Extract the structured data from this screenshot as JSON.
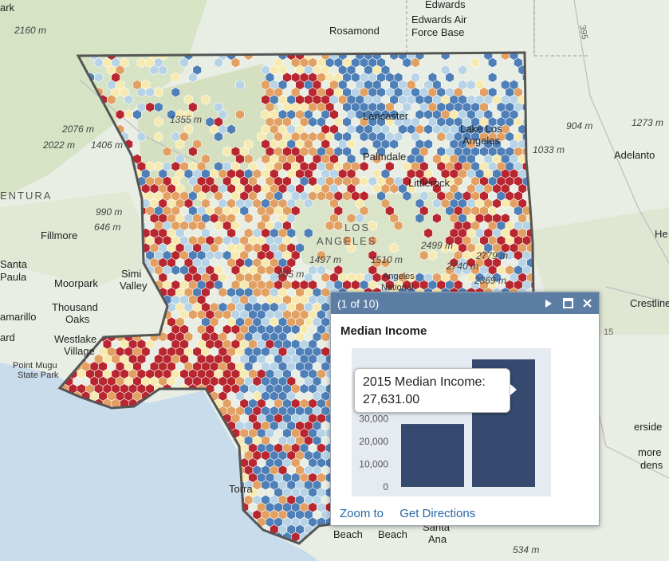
{
  "map": {
    "colors": {
      "dark_red": "#b8262f",
      "orange": "#e2a063",
      "light_yellow": "#f6eab0",
      "light_blue": "#b7d3e6",
      "dark_blue": "#4f7fb7",
      "boundary": "#555555",
      "water": "#c9dcec",
      "terrain": "#e9eee4"
    },
    "labels": {
      "edwards": "Edwards",
      "edwards_afb_1": "Edwards Air",
      "edwards_afb_2": "Force Base",
      "rosamond": "Rosamond",
      "lancaster": "Lancaster",
      "palmdale": "Palmdale",
      "littlerock": "Littlerock",
      "lake_los_angeles_1": "Lake Los",
      "lake_los_angeles_2": "Angeles",
      "adelanto": "Adelanto",
      "ventura": "ENTURA",
      "los_angeles_1": "LOS",
      "los_angeles_2": "ANGELES",
      "fillmore": "Fillmore",
      "santa_paula_1": "Santa",
      "santa_paula_2": "Paula",
      "moorpark": "Moorpark",
      "simi_valley_1": "Simi",
      "simi_valley_2": "Valley",
      "thousand_oaks_1": "Thousand",
      "thousand_oaks_2": "Oaks",
      "camarillo": "amarillo",
      "westlake_1": "Westlake",
      "westlake_2": "Village",
      "ard": "ard",
      "point_mugu_1": "Point Mugu",
      "point_mugu_2": "State Park",
      "angeles_national_1": "Angeles",
      "angeles_national_2": "National",
      "crestline": "Crestline",
      "riverside": "erside",
      "more_gardens_1": "more",
      "more_gardens_2": "dens",
      "hesperia": "He",
      "torrance": "Torra",
      "santa_ana_1": "Santa",
      "santa_ana_2": "Ana",
      "beach_1": "Beach",
      "beach_2": "Beach",
      "hwy_395": "395",
      "hwy_15": "15",
      "park": "ark",
      "e_2160": "2160 m",
      "e_2076": "2076 m",
      "e_2022": "2022 m",
      "e_1406": "1406 m",
      "e_1355": "1355 m",
      "e_990": "990 m",
      "e_646": "646 m",
      "e_904": "904 m",
      "e_1273": "1273 m",
      "e_1033": "1033 m",
      "e_1497": "1497 m",
      "e_1510": "1510 m",
      "e_2499": "2499 m",
      "e_2779": "2779 m",
      "e_2740": "2740 m",
      "e_2369": "2369 m",
      "e_905": "905 m",
      "e_534": "534 m"
    }
  },
  "popup": {
    "counter": "(1 of 10)",
    "title": "Median Income",
    "zoom_link": "Zoom to",
    "directions_link": "Get Directions",
    "tooltip_line1": "2015 Median Income:",
    "tooltip_line2": "27,631.00"
  },
  "chart_data": {
    "type": "bar",
    "categories": [
      "",
      ""
    ],
    "values": [
      27631,
      56000
    ],
    "ylim": [
      0,
      56000
    ],
    "ticks": [
      "30,000",
      "20,000",
      "10,000",
      "0"
    ],
    "tick_values": [
      30000,
      20000,
      10000,
      0
    ],
    "bar_color": "#354a6e"
  }
}
